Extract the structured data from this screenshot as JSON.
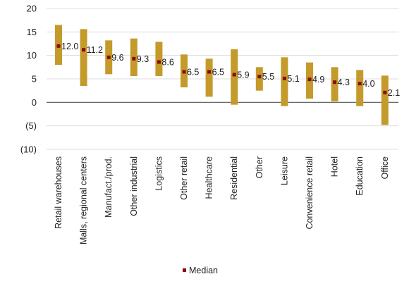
{
  "chart_data": {
    "type": "bar",
    "subtype": "floating-range-with-median",
    "categories": [
      "Retail warehouses",
      "Malls, regional centers",
      "Manufact./prod.",
      "Other industrial",
      "Logistics",
      "Other retail",
      "Healthcare",
      "Residential",
      "Other",
      "Leisure",
      "Convenience retail",
      "Hotel",
      "Education",
      "Office"
    ],
    "range_low": [
      8.0,
      3.5,
      6.0,
      5.6,
      5.6,
      3.2,
      1.2,
      -0.5,
      2.5,
      -0.8,
      0.8,
      0.2,
      -0.8,
      -4.8
    ],
    "range_high": [
      16.5,
      15.6,
      13.2,
      13.6,
      12.9,
      10.2,
      9.3,
      11.3,
      7.5,
      9.6,
      8.5,
      7.5,
      6.9,
      5.7
    ],
    "median": [
      12.0,
      11.2,
      9.6,
      9.3,
      8.6,
      6.5,
      6.5,
      5.9,
      5.5,
      5.1,
      4.9,
      4.3,
      4.0,
      2.1
    ],
    "median_labels": [
      "12.0",
      "11.2",
      "9.6",
      "9.3",
      "8.6",
      "6.5",
      "6.5",
      "5.9",
      "5.5",
      "5.1",
      "4.9",
      "4.3",
      "4.0",
      "2.1"
    ],
    "y_ticks": [
      20,
      15,
      10,
      5,
      0,
      -5,
      -10
    ],
    "y_tick_labels": [
      "20",
      "15",
      "10",
      "5",
      "0",
      "(5)",
      "(10)"
    ],
    "ylim": [
      -10,
      20
    ],
    "grid": true,
    "legend": {
      "position": "bottom",
      "entries": [
        "Median"
      ]
    },
    "colors": {
      "range_bar": "#c49a2a",
      "median_marker": "#8b0a0a",
      "gridline": "#dcdcdc",
      "zero_line": "#555555"
    }
  }
}
